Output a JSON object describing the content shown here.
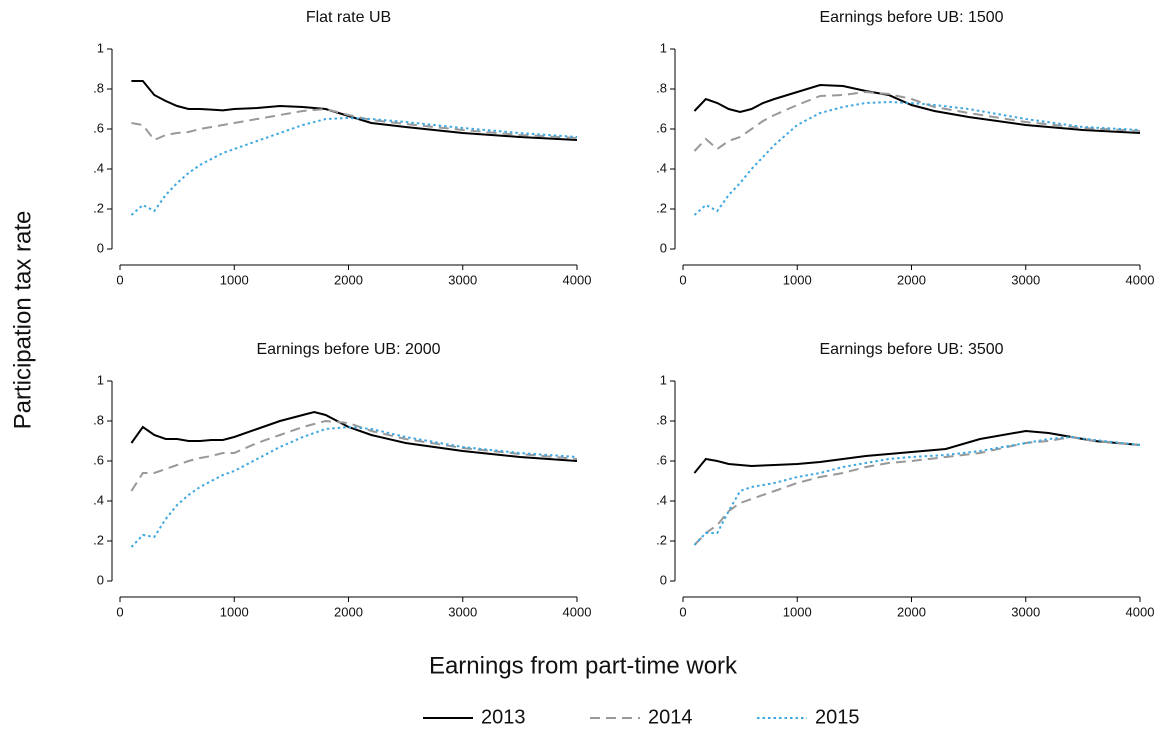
{
  "ylabel": "Participation tax rate",
  "xlabel": "Earnings from part-time work",
  "chart_data": [
    {
      "type": "line",
      "title": "Flat rate UB",
      "x": [
        100,
        200,
        300,
        400,
        500,
        600,
        700,
        800,
        900,
        1000,
        1200,
        1400,
        1600,
        1800,
        2000,
        2200,
        2500,
        3000,
        3500,
        4000
      ],
      "series": [
        {
          "name": "2013",
          "color": "#000000",
          "dash": "solid",
          "values": [
            0.84,
            0.84,
            0.77,
            0.74,
            0.715,
            0.7,
            0.7,
            0.697,
            0.693,
            0.7,
            0.705,
            0.715,
            0.71,
            0.7,
            0.665,
            0.63,
            0.61,
            0.58,
            0.56,
            0.545
          ]
        },
        {
          "name": "2014",
          "color": "#999999",
          "dash": "dashed",
          "values": [
            0.63,
            0.62,
            0.545,
            0.57,
            0.58,
            0.585,
            0.6,
            0.61,
            0.62,
            0.63,
            0.65,
            0.67,
            0.69,
            0.7,
            0.67,
            0.645,
            0.625,
            0.595,
            0.57,
            0.555
          ]
        },
        {
          "name": "2015",
          "color": "#3ea8e0",
          "dash": "dotted",
          "values": [
            0.17,
            0.22,
            0.19,
            0.27,
            0.33,
            0.38,
            0.42,
            0.45,
            0.48,
            0.5,
            0.54,
            0.58,
            0.62,
            0.65,
            0.655,
            0.65,
            0.635,
            0.605,
            0.58,
            0.56
          ]
        }
      ],
      "xlim": [
        0,
        4000
      ],
      "xticks": [
        0,
        1000,
        2000,
        3000,
        4000
      ],
      "ylim": [
        0,
        1
      ],
      "yticks": [
        0,
        {
          "value": 0.2,
          "label": ".2"
        },
        {
          "value": 0.4,
          "label": ".4"
        },
        {
          "value": 0.6,
          "label": ".6"
        },
        {
          "value": 0.8,
          "label": ".8"
        },
        1
      ]
    },
    {
      "type": "line",
      "title": "Earnings before UB: 1500",
      "x": [
        100,
        200,
        300,
        400,
        500,
        600,
        700,
        800,
        1000,
        1200,
        1400,
        1600,
        1800,
        2000,
        2200,
        2500,
        3000,
        3500,
        4000
      ],
      "series": [
        {
          "name": "2013",
          "color": "#000000",
          "dash": "solid",
          "values": [
            0.69,
            0.75,
            0.73,
            0.7,
            0.685,
            0.7,
            0.73,
            0.75,
            0.785,
            0.82,
            0.815,
            0.79,
            0.77,
            0.72,
            0.69,
            0.66,
            0.62,
            0.595,
            0.58
          ]
        },
        {
          "name": "2014",
          "color": "#999999",
          "dash": "dashed",
          "values": [
            0.49,
            0.55,
            0.5,
            0.54,
            0.56,
            0.6,
            0.64,
            0.67,
            0.72,
            0.765,
            0.77,
            0.785,
            0.775,
            0.75,
            0.71,
            0.68,
            0.635,
            0.605,
            0.59
          ]
        },
        {
          "name": "2015",
          "color": "#3ea8e0",
          "dash": "dotted",
          "values": [
            0.17,
            0.22,
            0.19,
            0.27,
            0.33,
            0.4,
            0.46,
            0.52,
            0.62,
            0.68,
            0.71,
            0.73,
            0.735,
            0.73,
            0.72,
            0.7,
            0.65,
            0.61,
            0.595
          ]
        }
      ],
      "xlim": [
        0,
        4000
      ],
      "xticks": [
        0,
        1000,
        2000,
        3000,
        4000
      ],
      "ylim": [
        0,
        1
      ],
      "yticks": [
        0,
        {
          "value": 0.2,
          "label": ".2"
        },
        {
          "value": 0.4,
          "label": ".4"
        },
        {
          "value": 0.6,
          "label": ".6"
        },
        {
          "value": 0.8,
          "label": ".8"
        },
        1
      ]
    },
    {
      "type": "line",
      "title": "Earnings before UB: 2000",
      "x": [
        100,
        200,
        300,
        400,
        500,
        600,
        700,
        800,
        900,
        1000,
        1200,
        1400,
        1600,
        1700,
        1800,
        2000,
        2200,
        2500,
        3000,
        3500,
        4000
      ],
      "series": [
        {
          "name": "2013",
          "color": "#000000",
          "dash": "solid",
          "values": [
            0.69,
            0.77,
            0.73,
            0.71,
            0.71,
            0.7,
            0.7,
            0.705,
            0.705,
            0.72,
            0.76,
            0.8,
            0.83,
            0.845,
            0.83,
            0.77,
            0.73,
            0.69,
            0.65,
            0.62,
            0.6
          ]
        },
        {
          "name": "2014",
          "color": "#999999",
          "dash": "dashed",
          "values": [
            0.45,
            0.54,
            0.54,
            0.56,
            0.58,
            0.6,
            0.615,
            0.625,
            0.64,
            0.64,
            0.69,
            0.73,
            0.77,
            0.785,
            0.8,
            0.79,
            0.75,
            0.71,
            0.665,
            0.635,
            0.61
          ]
        },
        {
          "name": "2015",
          "color": "#3ea8e0",
          "dash": "dotted",
          "values": [
            0.17,
            0.23,
            0.22,
            0.31,
            0.38,
            0.43,
            0.47,
            0.5,
            0.53,
            0.55,
            0.61,
            0.67,
            0.72,
            0.74,
            0.76,
            0.77,
            0.76,
            0.72,
            0.67,
            0.64,
            0.62
          ]
        }
      ],
      "xlim": [
        0,
        4000
      ],
      "xticks": [
        0,
        1000,
        2000,
        3000,
        4000
      ],
      "ylim": [
        0,
        1
      ],
      "yticks": [
        0,
        {
          "value": 0.2,
          "label": ".2"
        },
        {
          "value": 0.4,
          "label": ".4"
        },
        {
          "value": 0.6,
          "label": ".6"
        },
        {
          "value": 0.8,
          "label": ".8"
        },
        1
      ]
    },
    {
      "type": "line",
      "title": "Earnings before UB: 3500",
      "x": [
        100,
        200,
        300,
        400,
        500,
        600,
        800,
        1000,
        1200,
        1400,
        1600,
        1800,
        2000,
        2300,
        2600,
        3000,
        3200,
        3400,
        3600,
        4000
      ],
      "series": [
        {
          "name": "2013",
          "color": "#000000",
          "dash": "solid",
          "values": [
            0.54,
            0.61,
            0.6,
            0.585,
            0.58,
            0.575,
            0.58,
            0.585,
            0.595,
            0.61,
            0.625,
            0.635,
            0.645,
            0.66,
            0.71,
            0.75,
            0.74,
            0.72,
            0.7,
            0.68
          ]
        },
        {
          "name": "2014",
          "color": "#999999",
          "dash": "dashed",
          "values": [
            0.18,
            0.24,
            0.28,
            0.35,
            0.39,
            0.41,
            0.45,
            0.49,
            0.52,
            0.54,
            0.57,
            0.59,
            0.6,
            0.62,
            0.64,
            0.69,
            0.7,
            0.72,
            0.7,
            0.68
          ]
        },
        {
          "name": "2015",
          "color": "#3ea8e0",
          "dash": "dotted",
          "values": [
            0.18,
            0.24,
            0.24,
            0.35,
            0.45,
            0.47,
            0.49,
            0.52,
            0.54,
            0.57,
            0.59,
            0.61,
            0.62,
            0.63,
            0.65,
            0.69,
            0.71,
            0.72,
            0.705,
            0.68
          ]
        }
      ],
      "xlim": [
        0,
        4000
      ],
      "xticks": [
        0,
        1000,
        2000,
        3000,
        4000
      ],
      "ylim": [
        0,
        1
      ],
      "yticks": [
        0,
        {
          "value": 0.2,
          "label": ".2"
        },
        {
          "value": 0.4,
          "label": ".4"
        },
        {
          "value": 0.6,
          "label": ".6"
        },
        {
          "value": 0.8,
          "label": ".8"
        },
        1
      ]
    }
  ]
}
